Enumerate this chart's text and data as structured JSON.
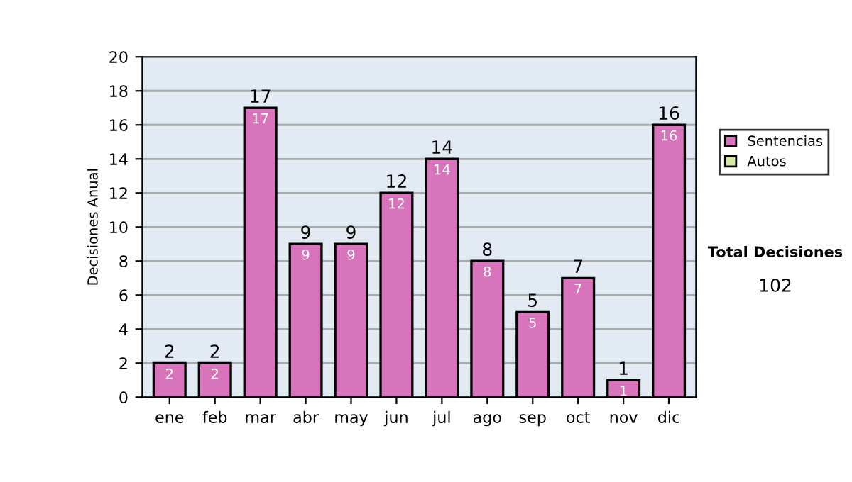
{
  "chart_data": {
    "type": "bar",
    "stacked": true,
    "ylabel": "Decisiones Anual",
    "categories": [
      "ene",
      "feb",
      "mar",
      "abr",
      "may",
      "jun",
      "jul",
      "ago",
      "sep",
      "oct",
      "nov",
      "dic"
    ],
    "series": [
      {
        "name": "Sentencias",
        "color": "#d874bc",
        "values": [
          2,
          2,
          17,
          9,
          9,
          12,
          14,
          8,
          5,
          7,
          1,
          16
        ],
        "value_labels": [
          "2",
          "2",
          "17",
          "9",
          "9",
          "12",
          "14",
          "8",
          "5",
          "7",
          "1",
          "16"
        ]
      },
      {
        "name": "Autos",
        "color": "#d4e8a0",
        "values": [
          0,
          0,
          0,
          0,
          0,
          0,
          0,
          0,
          0,
          0,
          0,
          0
        ]
      }
    ],
    "totals": [
      "2",
      "2",
      "17",
      "9",
      "9",
      "12",
      "14",
      "8",
      "5",
      "7",
      "1",
      "16"
    ],
    "ylim": [
      0,
      20
    ],
    "yticks": [
      0,
      2,
      4,
      6,
      8,
      10,
      12,
      14,
      16,
      18,
      20
    ],
    "grid": "y",
    "legend": "right",
    "annotations": [
      "Total Decisiones",
      "102"
    ]
  }
}
